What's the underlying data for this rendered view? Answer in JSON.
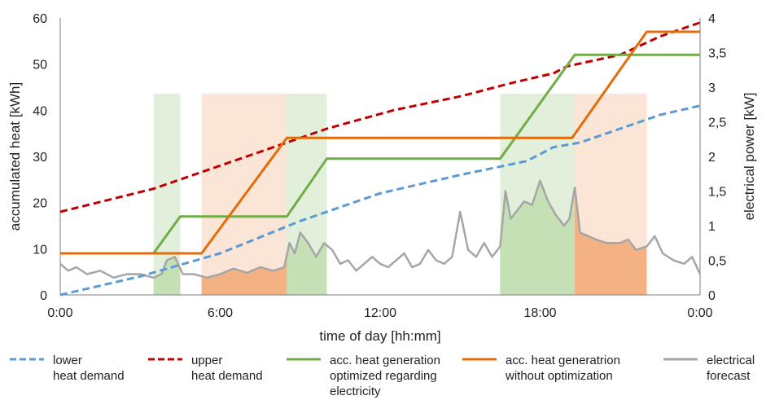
{
  "chart_data": {
    "type": "line",
    "xlabel": "time of day [hh:mm]",
    "ylabel_left": "accumulated heat [kWh]",
    "ylabel_right": "electrical power [kW]",
    "x_ticks": [
      "0:00",
      "6:00",
      "12:00",
      "18:00",
      "0:00"
    ],
    "x_tick_hours": [
      0,
      6,
      12,
      18,
      24
    ],
    "xlim_hours": [
      0,
      24
    ],
    "ylim_left": [
      0,
      60
    ],
    "ylim_right": [
      0,
      4
    ],
    "y_ticks_left": [
      "0",
      "10",
      "20",
      "30",
      "40",
      "50",
      "60"
    ],
    "y_ticks_right": [
      "0",
      "0,5",
      "1",
      "1,5",
      "2",
      "2,5",
      "3",
      "3,5",
      "4"
    ],
    "grid": false,
    "legend_position": "bottom",
    "colors": {
      "lower": "#5b9bd5",
      "upper": "#c00000",
      "optimized": "#70ad47",
      "unoptimized": "#e46c0a",
      "forecast": "#a6a6a6",
      "green_band": "#e2efda",
      "orange_band": "#fbe5d6",
      "green_fill": "#c5e0b4",
      "orange_fill": "#f4b183"
    },
    "series": [
      {
        "key": "lower",
        "name": "lower\nheat demand",
        "axis": "left",
        "style": "dashed",
        "points": [
          [
            0,
            0
          ],
          [
            3,
            4
          ],
          [
            6,
            9
          ],
          [
            9,
            16
          ],
          [
            12,
            22
          ],
          [
            15,
            26
          ],
          [
            17.5,
            29
          ],
          [
            18.5,
            32
          ],
          [
            19.5,
            33
          ],
          [
            21,
            36
          ],
          [
            22.5,
            39
          ],
          [
            24,
            41
          ]
        ]
      },
      {
        "key": "upper",
        "name": "upper\nheat demand",
        "axis": "left",
        "style": "dashed",
        "points": [
          [
            0,
            18
          ],
          [
            3.5,
            23
          ],
          [
            6,
            28
          ],
          [
            8.5,
            33
          ],
          [
            10,
            36
          ],
          [
            12.5,
            40
          ],
          [
            15,
            43
          ],
          [
            17,
            46
          ],
          [
            18.5,
            48
          ],
          [
            19,
            49.5
          ],
          [
            21,
            52
          ],
          [
            22.5,
            56
          ],
          [
            24,
            59
          ]
        ]
      },
      {
        "key": "optimized",
        "name": "acc. heat generation\noptimized regarding\nelectricity",
        "axis": "left",
        "style": "solid",
        "points": [
          [
            0,
            9
          ],
          [
            3.5,
            9
          ],
          [
            4.5,
            17
          ],
          [
            8.5,
            17
          ],
          [
            10,
            29.5
          ],
          [
            16.5,
            29.5
          ],
          [
            19.3,
            52
          ],
          [
            24,
            52
          ]
        ]
      },
      {
        "key": "unoptimized",
        "name": "acc. heat generatrion\nwithout optimization",
        "axis": "left",
        "style": "solid",
        "points": [
          [
            0,
            9
          ],
          [
            5.3,
            9
          ],
          [
            8.5,
            34
          ],
          [
            19.2,
            34
          ],
          [
            22,
            57
          ],
          [
            24,
            57
          ]
        ]
      },
      {
        "key": "forecast",
        "name": "electrical\nforecast",
        "axis": "right",
        "style": "solid",
        "points": [
          [
            0,
            0.45
          ],
          [
            0.3,
            0.35
          ],
          [
            0.6,
            0.4
          ],
          [
            1,
            0.3
          ],
          [
            1.5,
            0.35
          ],
          [
            2,
            0.25
          ],
          [
            2.5,
            0.3
          ],
          [
            3,
            0.3
          ],
          [
            3.5,
            0.25
          ],
          [
            3.8,
            0.3
          ],
          [
            4.0,
            0.5
          ],
          [
            4.3,
            0.55
          ],
          [
            4.6,
            0.3
          ],
          [
            5,
            0.3
          ],
          [
            5.5,
            0.25
          ],
          [
            6,
            0.3
          ],
          [
            6.5,
            0.38
          ],
          [
            7,
            0.32
          ],
          [
            7.5,
            0.4
          ],
          [
            8,
            0.35
          ],
          [
            8.4,
            0.4
          ],
          [
            8.6,
            0.75
          ],
          [
            8.8,
            0.6
          ],
          [
            9,
            0.9
          ],
          [
            9.3,
            0.75
          ],
          [
            9.6,
            0.55
          ],
          [
            9.9,
            0.75
          ],
          [
            10.2,
            0.65
          ],
          [
            10.5,
            0.45
          ],
          [
            10.8,
            0.5
          ],
          [
            11.1,
            0.35
          ],
          [
            11.4,
            0.45
          ],
          [
            11.7,
            0.55
          ],
          [
            12,
            0.45
          ],
          [
            12.3,
            0.4
          ],
          [
            12.6,
            0.5
          ],
          [
            12.9,
            0.6
          ],
          [
            13.2,
            0.4
          ],
          [
            13.5,
            0.45
          ],
          [
            13.8,
            0.65
          ],
          [
            14.1,
            0.5
          ],
          [
            14.4,
            0.45
          ],
          [
            14.7,
            0.55
          ],
          [
            15,
            1.2
          ],
          [
            15.3,
            0.65
          ],
          [
            15.6,
            0.55
          ],
          [
            15.9,
            0.75
          ],
          [
            16.2,
            0.55
          ],
          [
            16.5,
            0.7
          ],
          [
            16.7,
            1.5
          ],
          [
            16.9,
            1.1
          ],
          [
            17.1,
            1.2
          ],
          [
            17.4,
            1.35
          ],
          [
            17.7,
            1.3
          ],
          [
            18,
            1.65
          ],
          [
            18.3,
            1.35
          ],
          [
            18.6,
            1.15
          ],
          [
            18.9,
            1.0
          ],
          [
            19.1,
            1.1
          ],
          [
            19.3,
            1.55
          ],
          [
            19.5,
            0.9
          ],
          [
            19.8,
            0.85
          ],
          [
            20.1,
            0.8
          ],
          [
            20.5,
            0.75
          ],
          [
            21,
            0.75
          ],
          [
            21.3,
            0.8
          ],
          [
            21.6,
            0.65
          ],
          [
            22,
            0.7
          ],
          [
            22.3,
            0.85
          ],
          [
            22.6,
            0.6
          ],
          [
            23,
            0.5
          ],
          [
            23.4,
            0.45
          ],
          [
            23.7,
            0.55
          ],
          [
            24,
            0.3
          ]
        ]
      }
    ],
    "shaded_bands": [
      {
        "color": "green",
        "from": 3.5,
        "to": 4.5
      },
      {
        "color": "orange",
        "from": 5.3,
        "to": 8.5
      },
      {
        "color": "green",
        "from": 8.5,
        "to": 10.0
      },
      {
        "color": "green",
        "from": 16.5,
        "to": 19.3
      },
      {
        "color": "orange",
        "from": 19.3,
        "to": 22.0
      }
    ]
  }
}
